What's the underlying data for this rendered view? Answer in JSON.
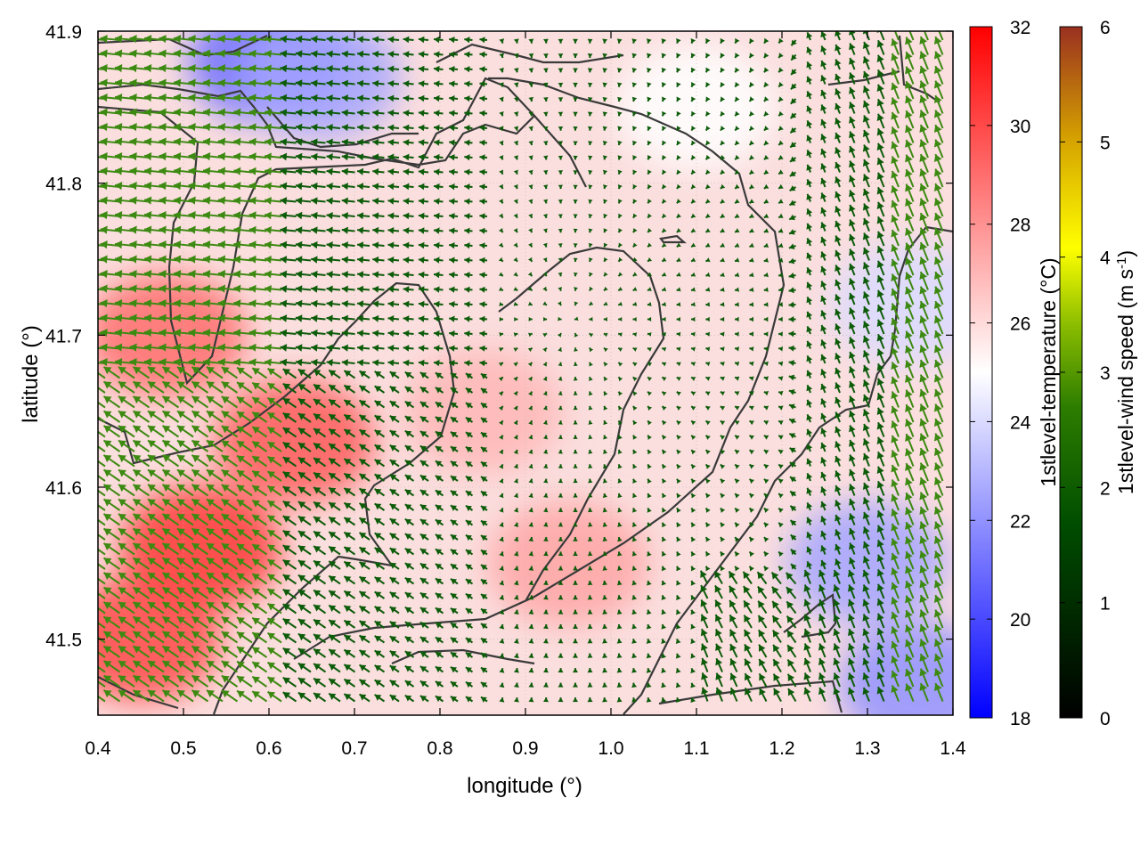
{
  "chart_data": [
    {
      "type": "vector-field",
      "xlabel": "longitude (°)",
      "ylabel": "latitude (°)",
      "xlim": [
        0.4,
        1.4
      ],
      "ylim": [
        41.45,
        41.9
      ],
      "xticks": [
        "0.4",
        "0.5",
        "0.6",
        "0.7",
        "0.8",
        "0.9",
        "1.0",
        "1.1",
        "1.2",
        "1.3",
        "1.4"
      ],
      "xtick_values": [
        0.4,
        0.5,
        0.6,
        0.7,
        0.8,
        0.9,
        1.0,
        1.1,
        1.2,
        1.3,
        1.4
      ],
      "yticks": [
        "41.5",
        "41.6",
        "41.7",
        "41.8",
        "41.9"
      ],
      "ytick_values": [
        41.5,
        41.6,
        41.7,
        41.8,
        41.9
      ],
      "grid": true,
      "background_field": "1stlevel-temperature",
      "vector_field": "1stlevel-wind",
      "temperature_regions": [
        {
          "lon": 0.48,
          "lat": 41.7,
          "temp": 29
        },
        {
          "lon": 0.52,
          "lat": 41.56,
          "temp": 30.5
        },
        {
          "lon": 0.63,
          "lat": 41.63,
          "temp": 29.5
        },
        {
          "lon": 0.45,
          "lat": 41.5,
          "temp": 30
        },
        {
          "lon": 0.85,
          "lat": 41.65,
          "temp": 27
        },
        {
          "lon": 0.95,
          "lat": 41.55,
          "temp": 27.5
        },
        {
          "lon": 0.6,
          "lat": 41.88,
          "temp": 21
        },
        {
          "lon": 0.66,
          "lat": 41.87,
          "temp": 22.5
        },
        {
          "lon": 1.3,
          "lat": 41.55,
          "temp": 22.5
        },
        {
          "lon": 1.36,
          "lat": 41.47,
          "temp": 22
        },
        {
          "lon": 1.35,
          "lat": 41.72,
          "temp": 24
        },
        {
          "lon": 1.1,
          "lat": 41.85,
          "temp": 25
        }
      ]
    },
    {
      "type": "colorbar",
      "label": "1stlevel-temperature (°C)",
      "range": [
        18,
        32
      ],
      "ticks": [
        "18",
        "20",
        "22",
        "24",
        "26",
        "28",
        "30",
        "32"
      ],
      "tick_values": [
        18,
        20,
        22,
        24,
        26,
        28,
        30,
        32
      ],
      "colors": [
        "#0000ff",
        "#ffffff",
        "#ff0000"
      ]
    },
    {
      "type": "colorbar",
      "label_main": "1stlevel-wind speed (m s",
      "label_sup": "-1",
      "label_end": ")",
      "range": [
        0,
        6
      ],
      "ticks": [
        "0",
        "1",
        "2",
        "3",
        "4",
        "5",
        "6"
      ],
      "tick_values": [
        0,
        1,
        2,
        3,
        4,
        5,
        6
      ],
      "colors": [
        "#000000",
        "#004d00",
        "#2d7d00",
        "#8cbe00",
        "#ffff00",
        "#d4a000",
        "#9a3020"
      ]
    }
  ],
  "colors": {
    "arrow": "#0d5c0a",
    "arrow_fast": "#3d8a12",
    "contour": "#3a3a3a",
    "frame": "#000000"
  }
}
